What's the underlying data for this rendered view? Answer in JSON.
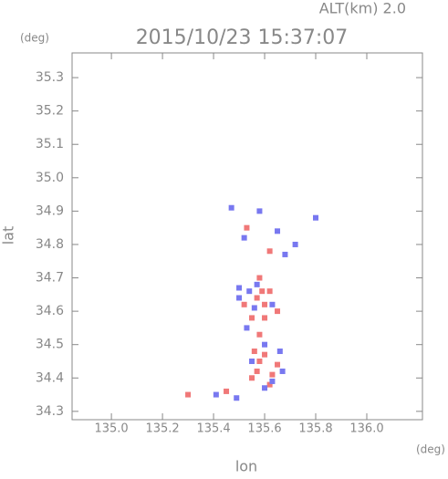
{
  "chart_data": {
    "type": "scatter",
    "title": "2015/10/23 15:37:07",
    "annotation": "ALT(km) 2.0",
    "y_unit": "(deg)",
    "x_unit": "(deg)",
    "xlabel": "lon",
    "ylabel": "lat",
    "xlim": [
      134.846,
      136.218
    ],
    "ylim": [
      34.275,
      35.374
    ],
    "xticks": [
      {
        "value": 135.0,
        "label": "135.0"
      },
      135.2,
      135.4,
      135.6,
      135.8,
      {
        "value": 136.0,
        "label": "136.0"
      }
    ],
    "yticks": [
      34.3,
      34.4,
      34.5,
      34.6,
      34.7,
      34.8,
      34.9,
      {
        "value": 35.0,
        "label": "35.0"
      },
      35.1,
      35.2,
      35.3
    ],
    "series": [
      {
        "color": "#f07878",
        "x": [
          135.59,
          135.6,
          135.57,
          135.62,
          135.55,
          135.58,
          135.56,
          135.6,
          135.57,
          135.63,
          135.55,
          135.62,
          135.52,
          135.6,
          135.58,
          135.65,
          135.53,
          135.62,
          135.3,
          135.45,
          135.58,
          135.65
        ],
        "values": [
          34.66,
          34.62,
          34.64,
          34.66,
          34.58,
          34.53,
          34.48,
          34.47,
          34.42,
          34.41,
          34.4,
          34.38,
          34.62,
          34.58,
          34.7,
          34.6,
          34.85,
          34.78,
          34.35,
          34.36,
          34.45,
          34.44
        ]
      },
      {
        "color": "#7878f0",
        "x": [
          135.54,
          135.5,
          135.63,
          135.56,
          135.53,
          135.6,
          135.66,
          135.55,
          135.63,
          135.6,
          135.57,
          135.5,
          135.58,
          135.47,
          135.65,
          135.68,
          135.52,
          135.72,
          135.8,
          135.41,
          135.49,
          135.67
        ],
        "values": [
          34.66,
          34.67,
          34.62,
          34.61,
          34.55,
          34.5,
          34.48,
          34.45,
          34.39,
          34.37,
          34.68,
          34.64,
          34.9,
          34.91,
          34.84,
          34.77,
          34.82,
          34.8,
          34.88,
          34.35,
          34.34,
          34.42
        ]
      }
    ]
  }
}
